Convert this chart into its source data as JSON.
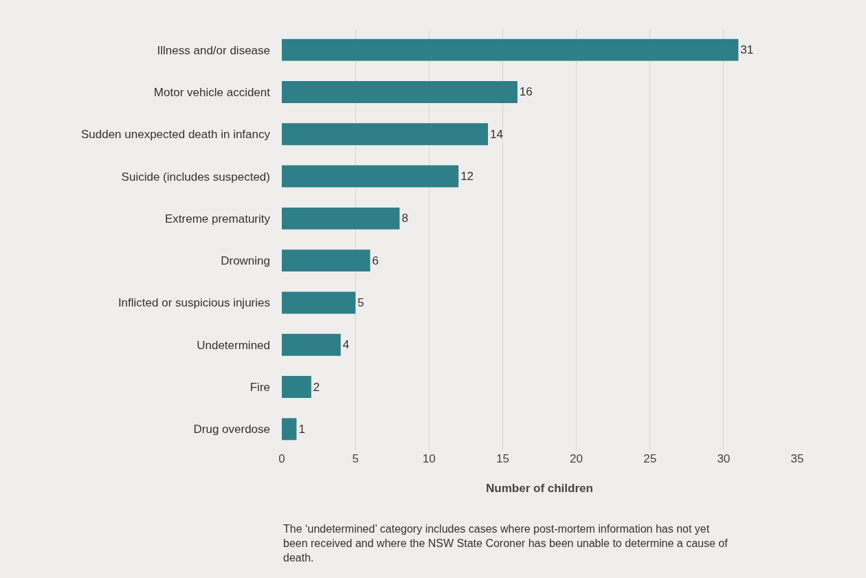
{
  "chart_data": {
    "type": "bar",
    "orientation": "horizontal",
    "categories": [
      "Illness and/or disease",
      "Motor vehicle accident",
      "Sudden unexpected death in infancy",
      "Suicide (includes suspected)",
      "Extreme prematurity",
      "Drowning",
      "Inflicted or suspicious injuries",
      "Undetermined",
      "Fire",
      "Drug overdose"
    ],
    "values": [
      31,
      16,
      14,
      12,
      8,
      6,
      5,
      4,
      2,
      1
    ],
    "color": "#2e7f87",
    "xlabel": "Number of children",
    "xlim": [
      0,
      35
    ],
    "xticks": [
      0,
      5,
      10,
      15,
      20,
      25,
      30,
      35
    ],
    "grid": "x",
    "data_labels": true,
    "legend": false,
    "annotations": [
      "The ‘undetermined’ category includes cases where post-mortem information has not yet been received and where the NSW State Coroner has been unable to determine a cause of death."
    ]
  }
}
